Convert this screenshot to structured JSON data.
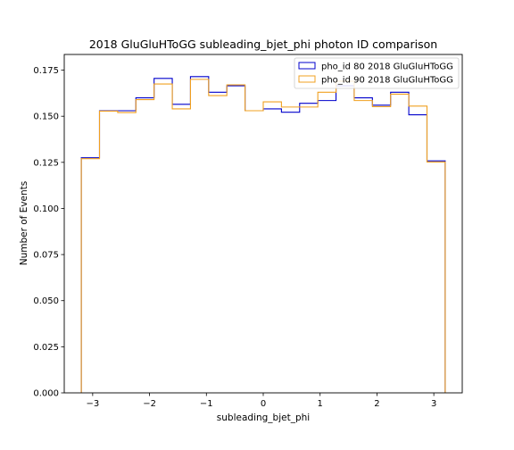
{
  "chart_data": {
    "type": "step-histogram",
    "title": "2018 GluGluHToGG subleading_bjet_phi photon ID comparison",
    "xlabel": "subleading_bjet_phi",
    "ylabel": "Number of Events",
    "xlim": [
      -3.5,
      3.5
    ],
    "ylim": [
      0,
      0.1835
    ],
    "x_ticks": [
      -3,
      -2,
      -1,
      0,
      1,
      2,
      3
    ],
    "x_tick_labels": [
      "−3",
      "−2",
      "−1",
      "0",
      "1",
      "2",
      "3"
    ],
    "y_ticks": [
      0.0,
      0.025,
      0.05,
      0.075,
      0.1,
      0.125,
      0.15,
      0.175
    ],
    "y_tick_labels": [
      "0.000",
      "0.025",
      "0.050",
      "0.075",
      "0.100",
      "0.125",
      "0.150",
      "0.175"
    ],
    "grid": false,
    "legend_position": "top-right",
    "bin_edges": [
      -3.2,
      -2.88,
      -2.56,
      -2.24,
      -1.92,
      -1.6,
      -1.28,
      -0.96,
      -0.64,
      -0.32,
      0.0,
      0.32,
      0.64,
      0.96,
      1.28,
      1.6,
      1.92,
      2.24,
      2.56,
      2.88,
      3.2
    ],
    "series": [
      {
        "name": "pho_id 80 2018 GluGluHToGG",
        "color": "#0000cc",
        "values": [
          0.1275,
          0.153,
          0.153,
          0.16,
          0.1705,
          0.1565,
          0.1715,
          0.163,
          0.1665,
          0.153,
          0.154,
          0.1522,
          0.157,
          0.1585,
          0.1665,
          0.16,
          0.156,
          0.163,
          0.1508,
          0.1258
        ]
      },
      {
        "name": "pho_id 90 2018 GluGluHToGG",
        "color": "#f0a020",
        "values": [
          0.127,
          0.1528,
          0.152,
          0.159,
          0.1675,
          0.154,
          0.17,
          0.1612,
          0.167,
          0.153,
          0.1578,
          0.155,
          0.155,
          0.163,
          0.169,
          0.1585,
          0.1552,
          0.162,
          0.1555,
          0.1252
        ]
      }
    ]
  }
}
